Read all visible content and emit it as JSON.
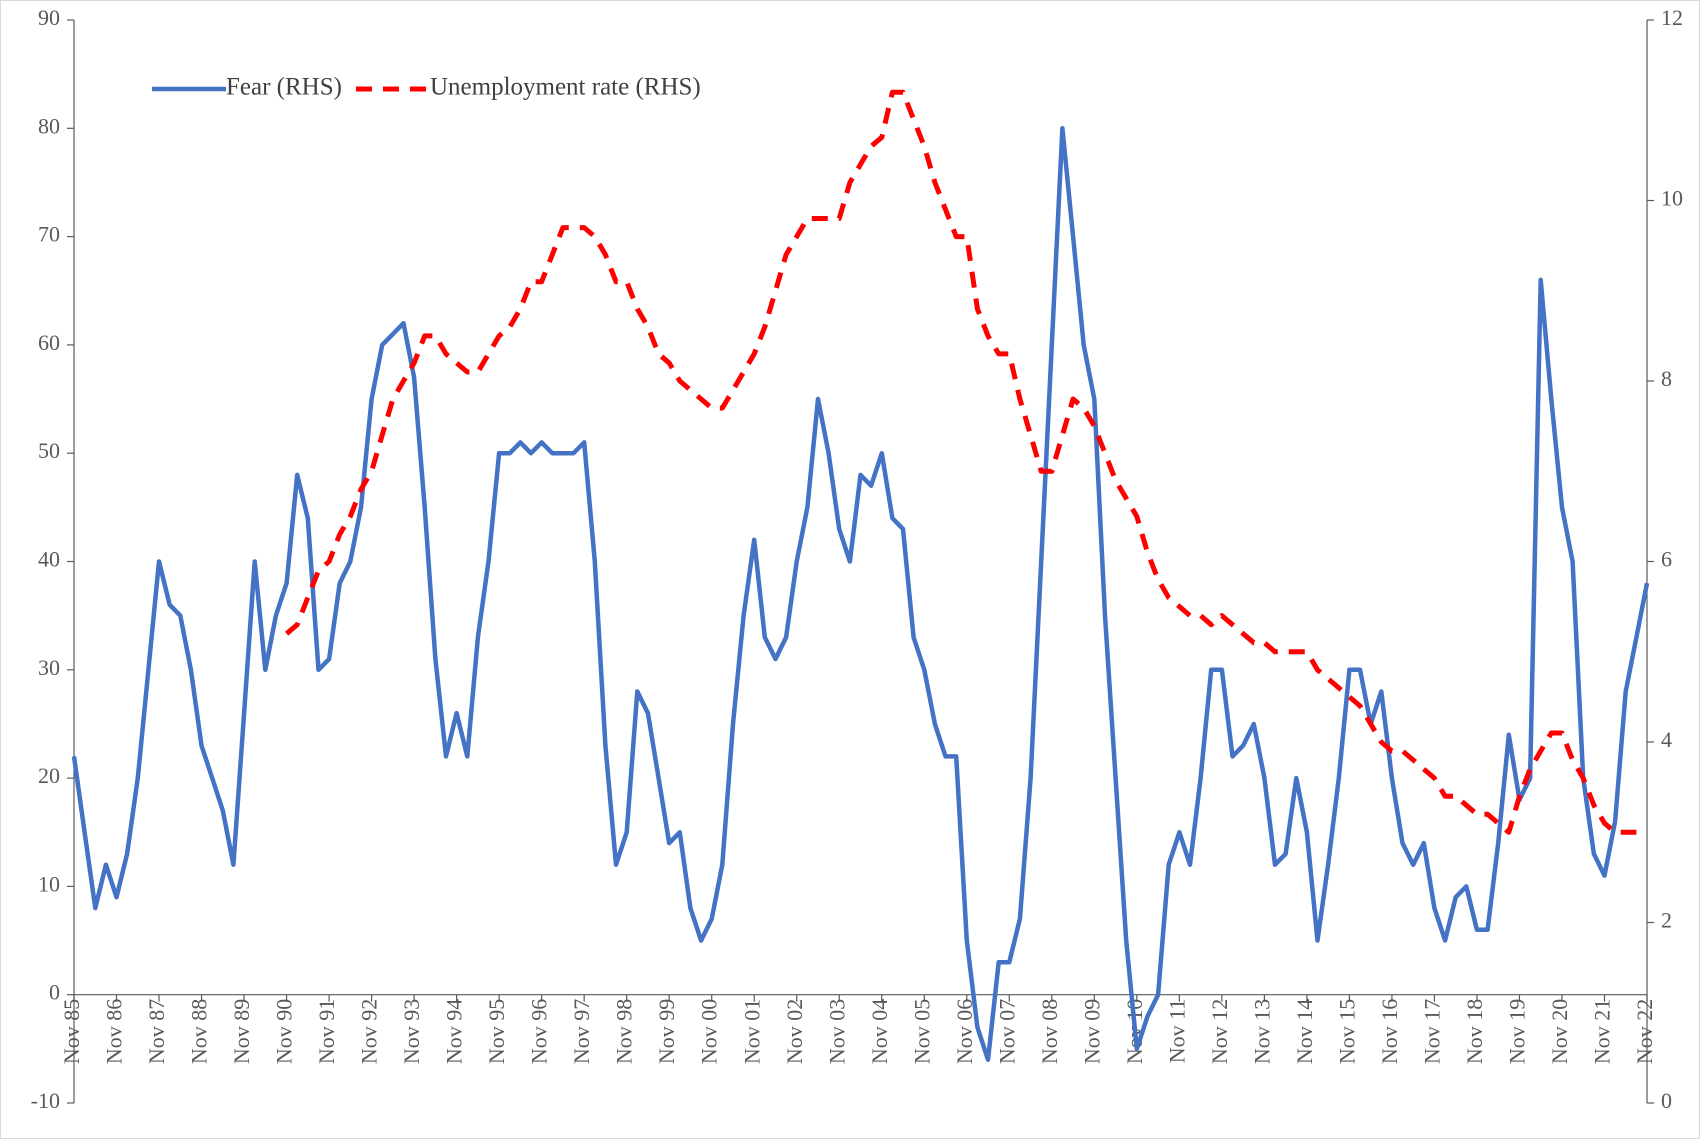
{
  "chart_data": {
    "type": "line",
    "categories": [
      "Nov 85",
      null,
      null,
      null,
      "Nov 86",
      null,
      null,
      null,
      "Nov 87",
      null,
      null,
      null,
      "Nov 88",
      null,
      null,
      null,
      "Nov 89",
      null,
      null,
      null,
      "Nov 90",
      null,
      null,
      null,
      "Nov 91",
      null,
      null,
      null,
      "Nov 92",
      null,
      null,
      null,
      "Nov 93",
      null,
      null,
      null,
      "Nov 94",
      null,
      null,
      null,
      "Nov 95",
      null,
      null,
      null,
      "Nov 96",
      null,
      null,
      null,
      "Nov 97",
      null,
      null,
      null,
      "Nov 98",
      null,
      null,
      null,
      "Nov 99",
      null,
      null,
      null,
      "Nov 00",
      null,
      null,
      null,
      "Nov 01",
      null,
      null,
      null,
      "Nov 02",
      null,
      null,
      null,
      "Nov 03",
      null,
      null,
      null,
      "Nov 04",
      null,
      null,
      null,
      "Nov 05",
      null,
      null,
      null,
      "Nov 06",
      null,
      null,
      null,
      "Nov 07",
      null,
      null,
      null,
      "Nov 08",
      null,
      null,
      null,
      "Nov 09",
      null,
      null,
      null,
      "Nov 10",
      null,
      null,
      null,
      "Nov 11",
      null,
      null,
      null,
      "Nov 12",
      null,
      null,
      null,
      "Nov 13",
      null,
      null,
      null,
      "Nov 14",
      null,
      null,
      null,
      "Nov 15",
      null,
      null,
      null,
      "Nov 16",
      null,
      null,
      null,
      "Nov 17",
      null,
      null,
      null,
      "Nov 18",
      null,
      null,
      null,
      "Nov 19",
      null,
      null,
      null,
      "Nov 20",
      null,
      null,
      null,
      "Nov 21",
      null,
      null,
      null,
      "Nov 22"
    ],
    "series": [
      {
        "name": "Fear (RHS)",
        "color": "#4472c4",
        "dash": false,
        "values": [
          22,
          15,
          8,
          12,
          9,
          13,
          20,
          30,
          40,
          36,
          35,
          30,
          23,
          20,
          17,
          12,
          26,
          40,
          30,
          35,
          38,
          48,
          44,
          30,
          31,
          38,
          40,
          45,
          55,
          60,
          61,
          62,
          57,
          45,
          31,
          22,
          26,
          22,
          33,
          40,
          50,
          50,
          51,
          50,
          51,
          50,
          50,
          50,
          51,
          40,
          23,
          12,
          15,
          28,
          26,
          20,
          14,
          15,
          8,
          5,
          7,
          12,
          25,
          35,
          42,
          33,
          31,
          33,
          40,
          45,
          55,
          50,
          43,
          40,
          48,
          47,
          50,
          44,
          43,
          33,
          30,
          25,
          22,
          22,
          5,
          -3,
          -6,
          3,
          3,
          7,
          20,
          40,
          60,
          80,
          70,
          60,
          55,
          35,
          20,
          5,
          -5,
          -2,
          0,
          12,
          15,
          12,
          20,
          30,
          30,
          22,
          23,
          25,
          20,
          12,
          13,
          20,
          15,
          5,
          12,
          20,
          30,
          30,
          25,
          28,
          20,
          14,
          12,
          14,
          8,
          5,
          9,
          10,
          6,
          6,
          14,
          24,
          18,
          20,
          66,
          55,
          45,
          40,
          20,
          13,
          11,
          16,
          28,
          33,
          38
        ]
      },
      {
        "name": "Unemployment rate (RHS)",
        "color": "#ff0000",
        "dash": true,
        "axis": "y2",
        "values": [
          null,
          null,
          null,
          null,
          null,
          null,
          null,
          null,
          null,
          null,
          null,
          null,
          null,
          null,
          null,
          null,
          null,
          null,
          null,
          null,
          5.2,
          5.3,
          5.6,
          5.9,
          6.0,
          6.3,
          6.5,
          6.8,
          7.0,
          7.4,
          7.8,
          8.0,
          8.2,
          8.5,
          8.5,
          8.3,
          8.2,
          8.1,
          8.1,
          8.3,
          8.5,
          8.6,
          8.8,
          9.1,
          9.1,
          9.4,
          9.7,
          9.7,
          9.7,
          9.6,
          9.4,
          9.1,
          9.1,
          8.8,
          8.6,
          8.3,
          8.2,
          8.0,
          7.9,
          7.8,
          7.7,
          7.7,
          7.9,
          8.1,
          8.3,
          8.6,
          9.0,
          9.4,
          9.6,
          9.8,
          9.8,
          9.8,
          9.8,
          10.2,
          10.4,
          10.6,
          10.7,
          11.2,
          11.2,
          10.9,
          10.6,
          10.2,
          9.9,
          9.6,
          9.6,
          8.8,
          8.5,
          8.3,
          8.3,
          7.8,
          7.4,
          7.0,
          7.0,
          7.4,
          7.8,
          7.7,
          7.5,
          7.2,
          6.9,
          6.7,
          6.5,
          6.1,
          5.8,
          5.6,
          5.5,
          5.4,
          5.4,
          5.3,
          5.4,
          5.3,
          5.2,
          5.1,
          5.1,
          5.0,
          5.0,
          5.0,
          5.0,
          4.8,
          4.7,
          4.6,
          4.5,
          4.4,
          4.2,
          4.0,
          3.9,
          3.9,
          3.8,
          3.7,
          3.6,
          3.4,
          3.4,
          3.3,
          3.2,
          3.2,
          3.1,
          3.0,
          3.4,
          3.7,
          3.9,
          4.1,
          4.1,
          3.8,
          3.6,
          3.3,
          3.1,
          3.0,
          3.0,
          3.0,
          null
        ]
      }
    ],
    "ylim": [
      -10,
      90
    ],
    "yticks": [
      -10,
      0,
      10,
      20,
      30,
      40,
      50,
      60,
      70,
      80,
      90
    ],
    "y2lim": [
      0,
      12
    ],
    "y2ticks": [
      0,
      2,
      4,
      6,
      8,
      10,
      12
    ],
    "grid": false,
    "legend": "upper left"
  }
}
